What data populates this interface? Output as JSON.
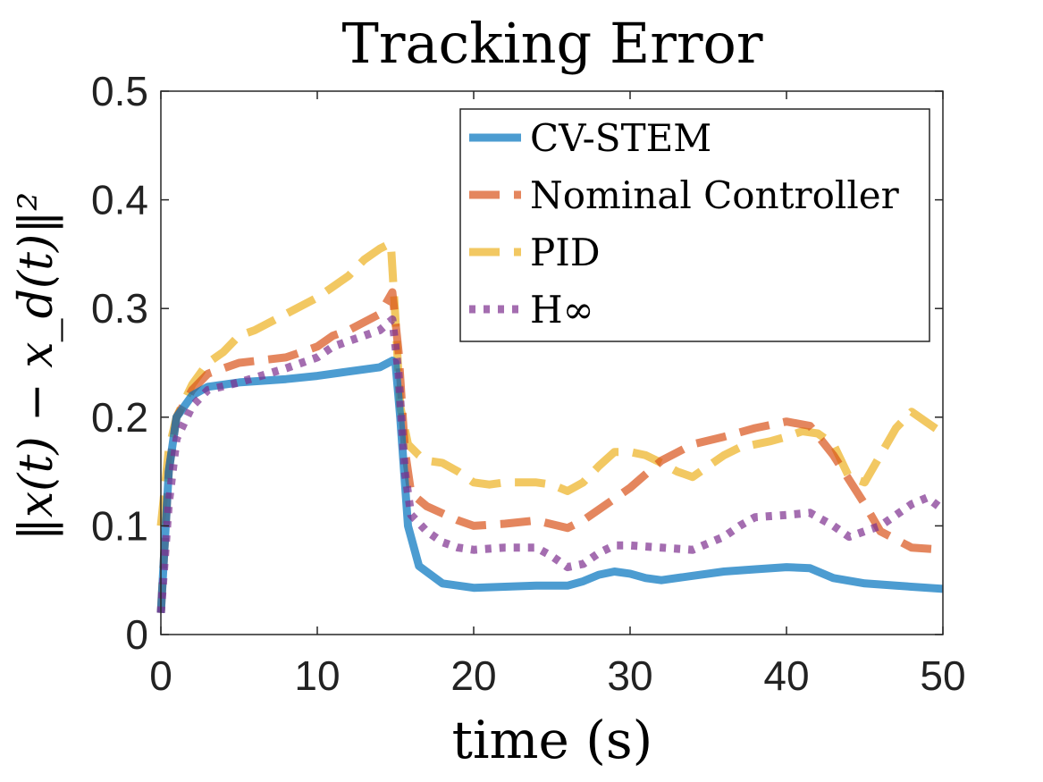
{
  "chart_data": {
    "type": "line",
    "title": "Tracking Error",
    "xlabel": "time (s)",
    "ylabel": "‖x(t) − x_d(t)‖²",
    "xlim": [
      0,
      50
    ],
    "ylim": [
      0,
      0.5
    ],
    "xticks": [
      0,
      10,
      20,
      30,
      40,
      50
    ],
    "yticks": [
      0,
      0.1,
      0.2,
      0.3,
      0.4,
      0.5
    ],
    "xtick_labels": [
      "0",
      "10",
      "20",
      "30",
      "40",
      "50"
    ],
    "ytick_labels": [
      "0",
      "0.1",
      "0.2",
      "0.3",
      "0.4",
      "0.5"
    ],
    "grid": false,
    "legend_position": "top-right",
    "series": [
      {
        "name": "CV-STEM",
        "color": "#0072BD",
        "style": "solid",
        "x": [
          0,
          0.5,
          1,
          2,
          3,
          5,
          8,
          10,
          12,
          14,
          14.8,
          15,
          15.3,
          15.8,
          16.5,
          18,
          20,
          22,
          24,
          26,
          27,
          28,
          29,
          30,
          31,
          32,
          34,
          36,
          38,
          40,
          41.5,
          43,
          45,
          47,
          50
        ],
        "values": [
          0.02,
          0.15,
          0.2,
          0.22,
          0.228,
          0.232,
          0.235,
          0.238,
          0.242,
          0.246,
          0.252,
          0.25,
          0.2,
          0.1,
          0.063,
          0.047,
          0.043,
          0.044,
          0.045,
          0.045,
          0.049,
          0.055,
          0.058,
          0.056,
          0.052,
          0.05,
          0.054,
          0.058,
          0.06,
          0.062,
          0.061,
          0.052,
          0.047,
          0.045,
          0.042
        ]
      },
      {
        "name": "Nominal Controller",
        "color": "#D95319",
        "style": "dashed",
        "x": [
          0,
          0.5,
          1,
          2,
          3,
          5,
          8,
          10,
          11,
          12,
          14,
          14.8,
          15.2,
          15.6,
          16,
          17,
          19,
          20,
          22,
          24,
          26,
          27,
          28,
          29,
          30,
          32,
          34,
          36,
          38,
          40,
          41.5,
          43,
          45,
          46,
          48,
          50
        ],
        "values": [
          0.02,
          0.15,
          0.2,
          0.225,
          0.24,
          0.25,
          0.255,
          0.265,
          0.275,
          0.28,
          0.295,
          0.315,
          0.26,
          0.17,
          0.13,
          0.118,
          0.105,
          0.1,
          0.102,
          0.105,
          0.098,
          0.105,
          0.115,
          0.125,
          0.135,
          0.16,
          0.175,
          0.182,
          0.19,
          0.196,
          0.192,
          0.165,
          0.12,
          0.095,
          0.08,
          0.078
        ]
      },
      {
        "name": "PID",
        "color": "#EDB120",
        "style": "dashed",
        "x": [
          0,
          0.5,
          1,
          2,
          3,
          4,
          5,
          6,
          8,
          10,
          12,
          13,
          14,
          14.7,
          15,
          15.3,
          15.8,
          16.5,
          17,
          18,
          19,
          20,
          21,
          22,
          23,
          24,
          25,
          26,
          27,
          28,
          29,
          30,
          31,
          32,
          33,
          34,
          35,
          36,
          37,
          38,
          39,
          40,
          41,
          42,
          43,
          44,
          45,
          46,
          47,
          48,
          49,
          50
        ],
        "values": [
          0.1,
          0.17,
          0.2,
          0.23,
          0.25,
          0.26,
          0.275,
          0.28,
          0.295,
          0.31,
          0.33,
          0.345,
          0.355,
          0.36,
          0.29,
          0.21,
          0.175,
          0.165,
          0.16,
          0.158,
          0.15,
          0.14,
          0.138,
          0.14,
          0.14,
          0.14,
          0.138,
          0.132,
          0.14,
          0.155,
          0.168,
          0.168,
          0.165,
          0.158,
          0.15,
          0.145,
          0.155,
          0.165,
          0.172,
          0.175,
          0.178,
          0.182,
          0.187,
          0.185,
          0.175,
          0.145,
          0.14,
          0.165,
          0.19,
          0.205,
          0.195,
          0.185
        ]
      },
      {
        "name": "H∞",
        "color": "#7E2F8E",
        "style": "dotted",
        "x": [
          0,
          0.5,
          1,
          2,
          3,
          5,
          8,
          10,
          11,
          12,
          14,
          14.8,
          15.2,
          15.6,
          16,
          17,
          18,
          19,
          20,
          22,
          24,
          25,
          26,
          27,
          28,
          29,
          30,
          32,
          34,
          36,
          37,
          38,
          40,
          41.5,
          43,
          44,
          46,
          48,
          49,
          50
        ],
        "values": [
          0.02,
          0.12,
          0.18,
          0.21,
          0.225,
          0.232,
          0.245,
          0.255,
          0.265,
          0.27,
          0.28,
          0.29,
          0.24,
          0.15,
          0.11,
          0.095,
          0.085,
          0.08,
          0.078,
          0.08,
          0.08,
          0.072,
          0.062,
          0.065,
          0.075,
          0.082,
          0.082,
          0.08,
          0.078,
          0.09,
          0.1,
          0.108,
          0.11,
          0.112,
          0.1,
          0.09,
          0.1,
          0.12,
          0.126,
          0.115
        ]
      }
    ]
  }
}
